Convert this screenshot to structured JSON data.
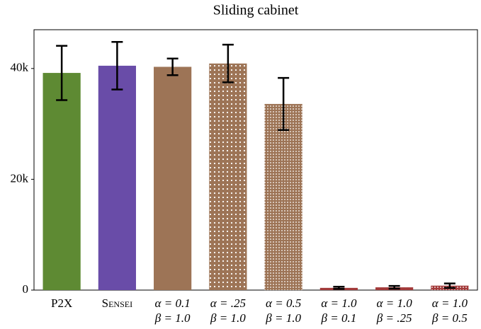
{
  "chart_data": {
    "type": "bar",
    "title": "Sliding cabinet",
    "categories": [
      "P2X",
      "Sensei",
      "α = 0.1\nβ = 1.0",
      "α = .25\nβ = 1.0",
      "α = 0.5\nβ = 1.0",
      "α = 1.0\nβ = 0.1",
      "α = 1.0\nβ = .25",
      "α = 1.0\nβ = 0.5"
    ],
    "values": [
      39200,
      40500,
      40300,
      40900,
      33600,
      400,
      500,
      800
    ],
    "errors": [
      4900,
      4300,
      1500,
      3400,
      4700,
      200,
      250,
      400
    ],
    "colors": [
      "#5e8a33",
      "#694ca8",
      "#9d7456",
      "#9d7456",
      "#9d7456",
      "#a33a3a",
      "#a33a3a",
      "#a33a3a"
    ],
    "patterns": [
      "solid",
      "solid",
      "solid",
      "dots",
      "fine-dots",
      "solid",
      "dots",
      "fine-dots"
    ],
    "ylim": [
      0,
      47000
    ],
    "yticks": [
      0,
      {
        "value": 20000,
        "label": "20k"
      },
      {
        "value": 40000,
        "label": "40k"
      }
    ],
    "grid": false
  }
}
